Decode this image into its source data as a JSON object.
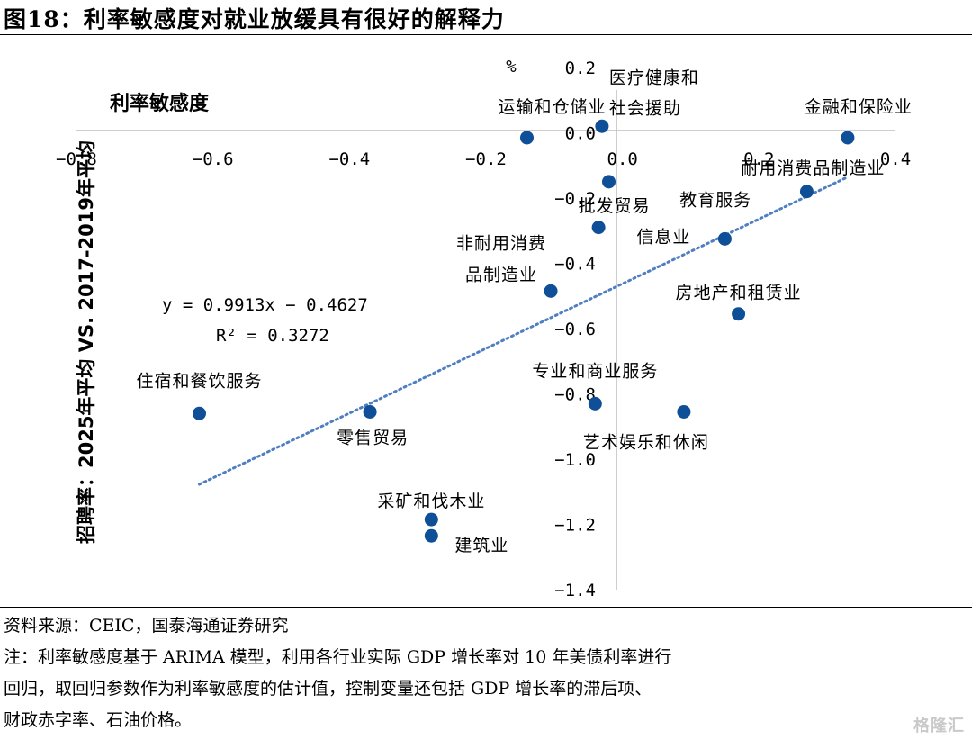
{
  "figure": {
    "title": "图18：利率敏感度对就业放缓具有很好的解释力"
  },
  "chart_data": {
    "type": "scatter",
    "xlabel": "利率敏感度",
    "ylabel": "招聘率：2025年平均 VS. 2017-2019年平均",
    "y_unit": "%",
    "xlim": [
      -0.8,
      0.4
    ],
    "ylim": [
      -1.4,
      0.2
    ],
    "x_ticks": [
      "−0.8",
      "−0.6",
      "−0.4",
      "−0.2",
      "0.0",
      "0.2",
      "0.4"
    ],
    "y_ticks": [
      "0.2",
      "0.0",
      "−0.2",
      "−0.4",
      "−0.6",
      "−0.8",
      "−1.0",
      "−1.2",
      "−1.4"
    ],
    "point_color": "#0e4f98",
    "trendline_color": "#4f7fc0",
    "points": [
      {
        "label": "医疗健康和社会援助",
        "x": -0.03,
        "y": 0.02
      },
      {
        "label": "运输和仓储业",
        "x": -0.14,
        "y": -0.015
      },
      {
        "label": "金融和保险业",
        "x": 0.33,
        "y": -0.015
      },
      {
        "label": "批发贸易",
        "x": -0.02,
        "y": -0.15
      },
      {
        "label": "耐用消费品制造业",
        "x": 0.27,
        "y": -0.18
      },
      {
        "label": "教育服务",
        "x": -0.035,
        "y": -0.29
      },
      {
        "label": "信息业",
        "x": 0.15,
        "y": -0.325
      },
      {
        "label": "非耐用消费品制造业",
        "x": -0.105,
        "y": -0.485
      },
      {
        "label": "房地产和租赁业",
        "x": 0.17,
        "y": -0.555
      },
      {
        "label": "专业和商业服务",
        "x": -0.04,
        "y": -0.83
      },
      {
        "label": "艺术娱乐和休闲",
        "x": 0.09,
        "y": -0.855
      },
      {
        "label": "零售贸易",
        "x": -0.37,
        "y": -0.855
      },
      {
        "label": "住宿和餐饮服务",
        "x": -0.62,
        "y": -0.86
      },
      {
        "label": "采矿和伐木业",
        "x": -0.28,
        "y": -1.185
      },
      {
        "label": "建筑业",
        "x": -0.28,
        "y": -1.235
      }
    ],
    "trendline": {
      "equation": "y = 0.9913x − 0.4627",
      "r_squared": "R² = 0.3272",
      "slope": 0.9913,
      "intercept": -0.4627,
      "x_range": [
        -0.62,
        0.33
      ]
    }
  },
  "source": {
    "line1": "资料来源：CEIC，国泰海通证券研究",
    "line2": "注：利率敏感度基于 ARIMA 模型，利用各行业实际 GDP 增长率对 10 年美债利率进行",
    "line3": "回归，取回归参数作为利率敏感度的估计值，控制变量还包括 GDP 增长率的滞后项、",
    "line4": "财政赤字率、石油价格。"
  },
  "watermark": "格隆汇"
}
